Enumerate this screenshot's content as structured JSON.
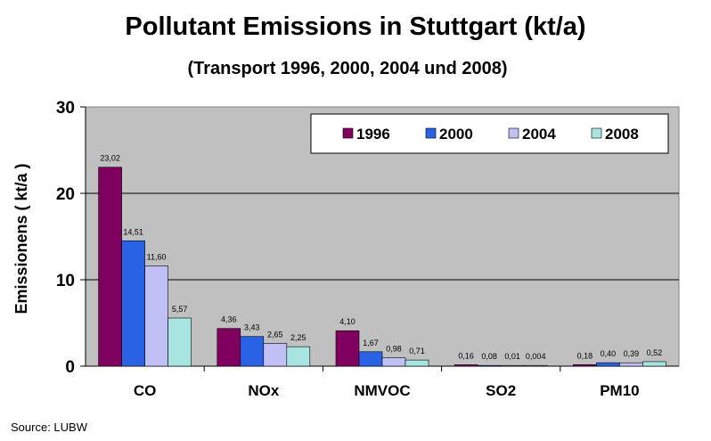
{
  "chart_data": {
    "type": "bar",
    "title": "Pollutant Emissions in Stuttgart (kt/a)",
    "subtitle": "(Transport 1996, 2000, 2004 und 2008)",
    "ylabel": "Emissionens ( kt/a )",
    "xlabel": "",
    "ylim": [
      0,
      30
    ],
    "yticks": [
      0,
      10,
      20,
      30
    ],
    "grid": true,
    "legend_position": "top-right",
    "categories": [
      "CO",
      "NOx",
      "NMVOC",
      "SO2",
      "PM10"
    ],
    "series": [
      {
        "name": "1996",
        "color": "#800060",
        "values": [
          23.02,
          4.36,
          4.1,
          0.16,
          0.18
        ],
        "labels": [
          "23,02",
          "4,36",
          "4,10",
          "0,16",
          "0,18"
        ]
      },
      {
        "name": "2000",
        "color": "#2a62e6",
        "values": [
          14.51,
          3.43,
          1.67,
          0.08,
          0.4
        ],
        "labels": [
          "14,51",
          "3,43",
          "1,67",
          "0,08",
          "0,40"
        ]
      },
      {
        "name": "2004",
        "color": "#c0c0f4",
        "values": [
          11.6,
          2.65,
          0.98,
          0.01,
          0.39
        ],
        "labels": [
          "11,60",
          "2,65",
          "0,98",
          "0,01",
          "0,39"
        ]
      },
      {
        "name": "2008",
        "color": "#a8e4e0",
        "values": [
          5.57,
          2.25,
          0.71,
          0.004,
          0.52
        ],
        "labels": [
          "5,57",
          "2,25",
          "0,71",
          "0,004",
          "0,52"
        ]
      }
    ],
    "plot_background": "#c0c0c0"
  },
  "source": "Source: LUBW"
}
